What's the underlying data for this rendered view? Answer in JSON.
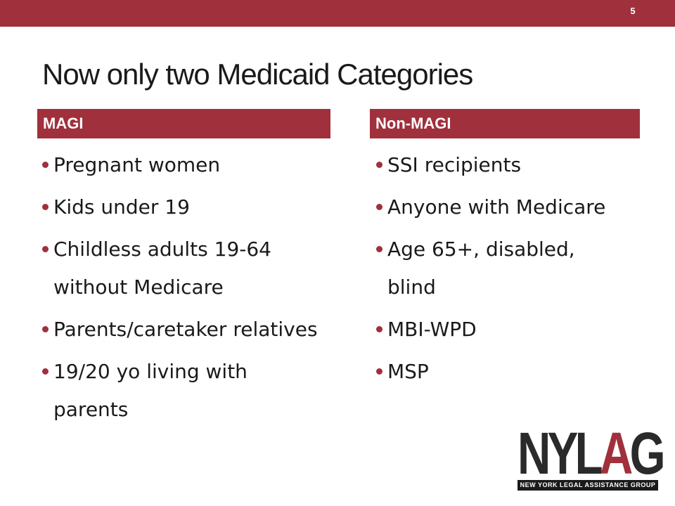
{
  "slide_number": "5",
  "title": "Now only two Medicaid Categories",
  "colors": {
    "accent": "#a0303c",
    "text": "#1a1a1a"
  },
  "columns": [
    {
      "header": "MAGI",
      "items": [
        "Pregnant women",
        "Kids under 19",
        "Childless adults 19-64 without Medicare",
        "Parents/caretaker relatives",
        "19/20 yo living with parents"
      ]
    },
    {
      "header": "Non-MAGI",
      "items": [
        "SSI recipients",
        "Anyone with Medicare",
        "Age 65+, disabled, blind",
        "MBI-WPD",
        "MSP"
      ]
    }
  ],
  "logo": {
    "letters_dark": "NYL",
    "letters_accent": "A",
    "letters_dark_end": "G",
    "tagline": "NEW YORK LEGAL ASSISTANCE GROUP"
  }
}
